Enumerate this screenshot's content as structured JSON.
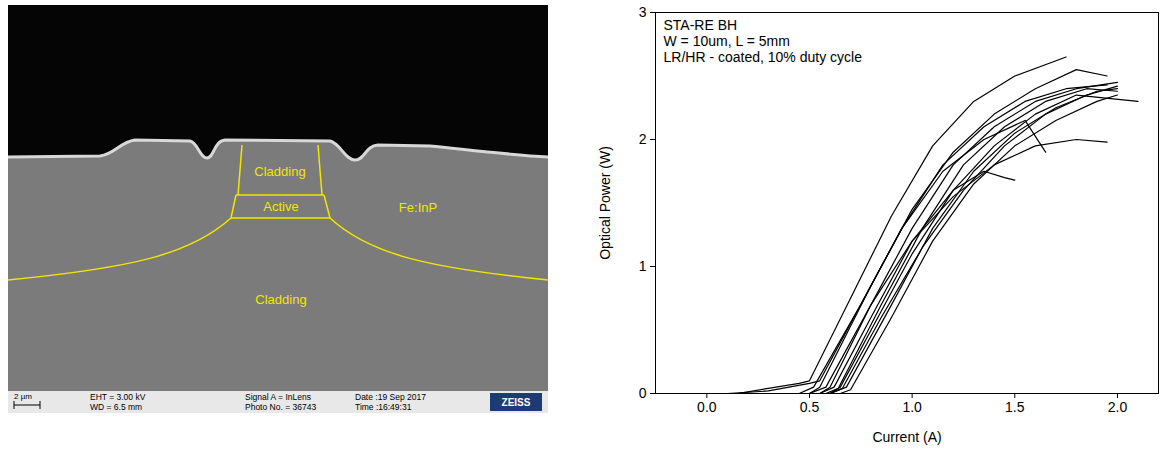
{
  "micrograph": {
    "labels": [
      "Cladding",
      "Active",
      "Fe:InP",
      "Cladding"
    ],
    "scale_bar": "2 µm",
    "info": [
      [
        "EHT = 3.00 kV",
        "WD = 6.5 mm"
      ],
      [
        "Signal A = InLens",
        "Photo No. = 36743"
      ],
      [
        "Date :19 Sep 2017",
        "Time :16:49:31"
      ]
    ],
    "logo": "ZEISS"
  },
  "chart_data": {
    "type": "line",
    "annotation": [
      "STA-RE BH",
      "W = 10um, L = 5mm",
      "LR/HR - coated, 10% duty cycle"
    ],
    "x_label": "Current (A)",
    "y_label": "Optical Power (W)",
    "xlim": [
      -0.25,
      2.2
    ],
    "xticks": [
      {
        "value": 0,
        "label": "0.0"
      },
      {
        "value": 0.5,
        "label": "0.5"
      },
      {
        "value": 1,
        "label": "1.0"
      },
      {
        "value": 1.5,
        "label": "1.5"
      },
      {
        "value": 2,
        "label": "2.0"
      }
    ],
    "ylim": [
      0,
      3
    ],
    "yticks": [
      0,
      1,
      2,
      3
    ],
    "grid": false,
    "color": "#000000",
    "series": [
      {
        "x": [
          0.15,
          0.45,
          0.5,
          0.7,
          0.9,
          1.1,
          1.3,
          1.5,
          1.75
        ],
        "values": [
          0,
          0.08,
          0.1,
          0.75,
          1.4,
          1.95,
          2.3,
          2.5,
          2.65
        ]
      },
      {
        "x": [
          0.5,
          0.55,
          0.8,
          1.0,
          1.2,
          1.4,
          1.6,
          1.8,
          1.95
        ],
        "values": [
          0,
          0.05,
          0.85,
          1.45,
          1.9,
          2.2,
          2.4,
          2.55,
          2.5
        ]
      },
      {
        "x": [
          0.55,
          0.6,
          0.8,
          1.0,
          1.2,
          1.4,
          1.6,
          1.8,
          2.0
        ],
        "values": [
          0,
          0.05,
          0.7,
          1.3,
          1.8,
          2.1,
          2.3,
          2.4,
          2.45
        ]
      },
      {
        "x": [
          0.6,
          0.65,
          0.85,
          1.0,
          1.2,
          1.4,
          1.6,
          1.8,
          2.1
        ],
        "values": [
          0,
          0.05,
          0.65,
          1.1,
          1.6,
          1.95,
          2.2,
          2.35,
          2.3
        ]
      },
      {
        "x": [
          0.6,
          0.68,
          0.9,
          1.1,
          1.3,
          1.5,
          1.7,
          1.9,
          2.0
        ],
        "values": [
          0,
          0.05,
          0.7,
          1.3,
          1.75,
          2.05,
          2.25,
          2.38,
          2.4
        ]
      },
      {
        "x": [
          0.65,
          0.7,
          0.9,
          1.1,
          1.3,
          1.5,
          1.7,
          1.9,
          2.0
        ],
        "values": [
          0,
          0.03,
          0.6,
          1.2,
          1.65,
          1.95,
          2.15,
          2.3,
          2.35
        ]
      },
      {
        "x": [
          0.55,
          0.62,
          0.8,
          1.0,
          1.2,
          1.35,
          1.45,
          1.5
        ],
        "values": [
          0,
          0.05,
          0.6,
          1.2,
          1.6,
          1.75,
          1.7,
          1.68
        ]
      },
      {
        "x": [
          0.5,
          0.58,
          0.8,
          1.0,
          1.2,
          1.4,
          1.6,
          1.8,
          1.95
        ],
        "values": [
          0,
          0.05,
          0.7,
          1.2,
          1.55,
          1.8,
          1.95,
          2.0,
          1.98
        ]
      },
      {
        "x": [
          0.45,
          0.52,
          0.75,
          0.95,
          1.15,
          1.35,
          1.55,
          1.65
        ],
        "values": [
          0,
          0.05,
          0.7,
          1.3,
          1.75,
          2.0,
          2.15,
          1.9
        ]
      },
      {
        "x": [
          0.6,
          0.66,
          0.85,
          1.05,
          1.25,
          1.45,
          1.65,
          1.85,
          2.0
        ],
        "values": [
          0,
          0.04,
          0.6,
          1.15,
          1.6,
          1.95,
          2.2,
          2.35,
          2.42
        ]
      },
      {
        "x": [
          0.1,
          0.3,
          0.5,
          0.55,
          0.75,
          0.95,
          1.15,
          1.35,
          1.55,
          1.75,
          1.95
        ],
        "values": [
          0,
          0.02,
          0.08,
          0.1,
          0.7,
          1.3,
          1.8,
          2.1,
          2.3,
          2.4,
          2.43
        ]
      },
      {
        "x": [
          0.58,
          0.64,
          0.85,
          1.05,
          1.25,
          1.45,
          1.65,
          1.85,
          2.0
        ],
        "values": [
          0,
          0.04,
          0.7,
          1.3,
          1.8,
          2.1,
          2.3,
          2.4,
          2.38
        ]
      }
    ]
  }
}
